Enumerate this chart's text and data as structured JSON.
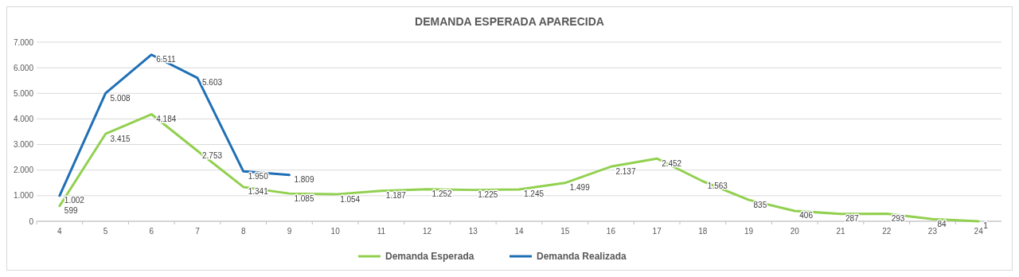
{
  "chart_data": {
    "type": "line",
    "title": "DEMANDA ESPERADA APARECIDA",
    "categories": [
      "4",
      "5",
      "6",
      "7",
      "8",
      "9",
      "10",
      "11",
      "12",
      "13",
      "14",
      "15",
      "16",
      "17",
      "18",
      "19",
      "20",
      "21",
      "22",
      "23",
      "24"
    ],
    "series": [
      {
        "name": "Demanda Esperada",
        "color": "#92d050",
        "values": [
          599,
          3415,
          4184,
          2753,
          1341,
          1085,
          1054,
          1187,
          1252,
          1225,
          1245,
          1499,
          2137,
          2452,
          1563,
          835,
          406,
          287,
          293,
          84,
          1
        ],
        "value_labels": [
          "599",
          "3.415",
          "4.184",
          "2.753",
          "1.341",
          "1.085",
          "1.054",
          "1.187",
          "1.252",
          "1.225",
          "1.245",
          "1.499",
          "2.137",
          "2.452",
          "1.563",
          "835",
          "406",
          "287",
          "293",
          "84",
          "1"
        ]
      },
      {
        "name": "Demanda Realizada",
        "color": "#1f6fb5",
        "values": [
          1002,
          5008,
          6511,
          5603,
          1950,
          1809,
          null,
          null,
          null,
          null,
          null,
          null,
          null,
          null,
          null,
          null,
          null,
          null,
          null,
          null,
          null
        ],
        "value_labels": [
          "1.002",
          "5.008",
          "6.511",
          "5.603",
          "1.950",
          "1.809",
          null,
          null,
          null,
          null,
          null,
          null,
          null,
          null,
          null,
          null,
          null,
          null,
          null,
          null,
          null
        ]
      }
    ],
    "ylim": [
      0,
      7000
    ],
    "yticks": [
      {
        "value": 0,
        "label": "0"
      },
      {
        "value": 1000,
        "label": "1.000"
      },
      {
        "value": 2000,
        "label": "2.000"
      },
      {
        "value": 3000,
        "label": "3.000"
      },
      {
        "value": 4000,
        "label": "4.000"
      },
      {
        "value": 5000,
        "label": "5.000"
      },
      {
        "value": 6000,
        "label": "6.000"
      },
      {
        "value": 7000,
        "label": "7.000"
      }
    ],
    "grid": "y",
    "legend": "bottom",
    "marker": "none",
    "line_style": "solid"
  }
}
